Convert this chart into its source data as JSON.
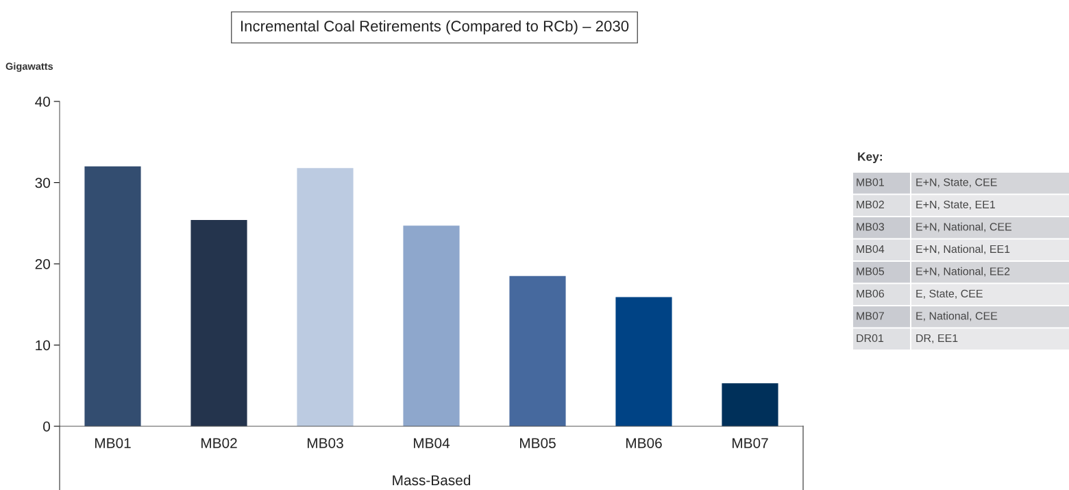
{
  "chart_data": {
    "type": "bar",
    "title": "Incremental Coal Retirements (Compared to RCb) – 2030",
    "ylabel": "Gigawatts",
    "xlabel": "Mass-Based",
    "categories": [
      "MB01",
      "MB02",
      "MB03",
      "MB04",
      "MB05",
      "MB06",
      "MB07"
    ],
    "values": [
      32,
      25.4,
      31.8,
      24.7,
      18.5,
      15.9,
      5.3
    ],
    "colors": [
      "#334d70",
      "#24344d",
      "#bccbe1",
      "#8ea7cc",
      "#46699e",
      "#004385",
      "#00305a"
    ],
    "ylim": [
      0,
      40
    ],
    "yticks": [
      0,
      10,
      20,
      30,
      40
    ],
    "grid": false,
    "legend": false,
    "annotations": [
      "Key:",
      "MB01",
      "E+N, State, CEE",
      "MB02",
      "E+N, State, EE1",
      "MB03",
      "E+N, National, CEE",
      "MB04",
      "E+N, National, EE1",
      "MB05",
      "E+N, National, EE2",
      "MB06",
      "E, State, CEE",
      "MB07",
      "E, National, CEE",
      "DR01",
      "DR, EE1"
    ]
  }
}
